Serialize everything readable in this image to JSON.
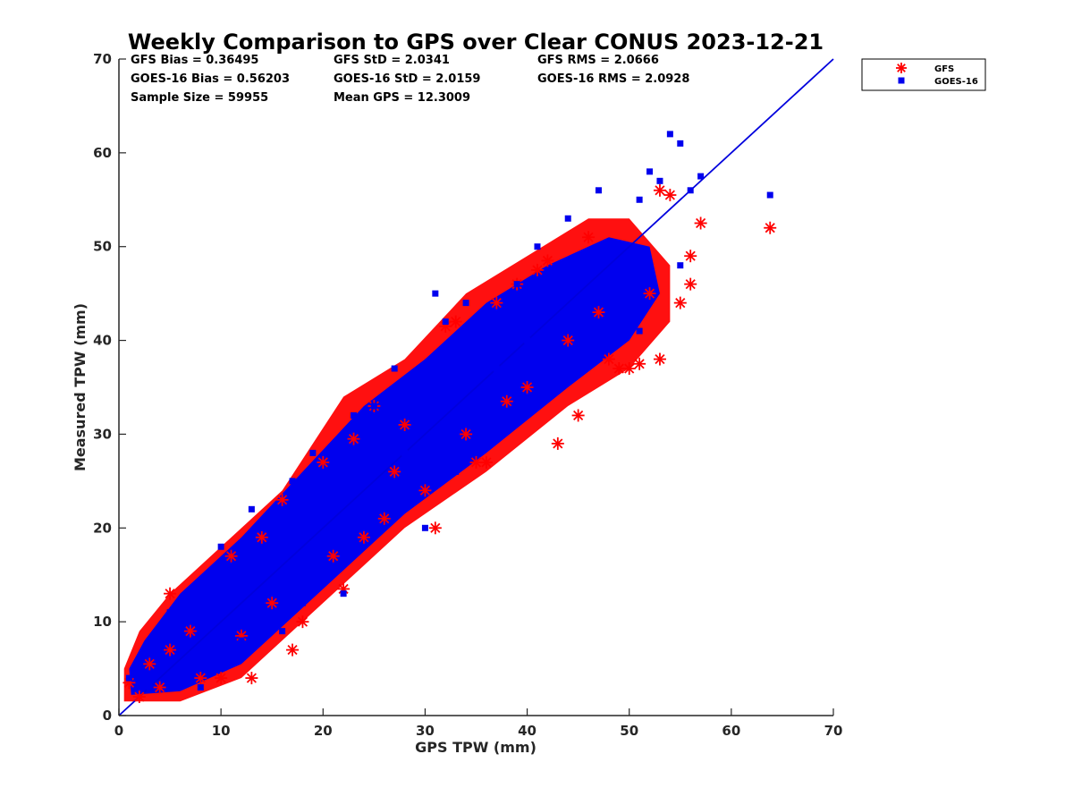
{
  "chart_data": {
    "type": "scatter",
    "title": "Weekly Comparison to GPS over Clear CONUS 2023-12-21",
    "xlabel": "GPS TPW (mm)",
    "ylabel": "Measured TPW (mm)",
    "xlim": [
      0,
      70
    ],
    "ylim": [
      0,
      70
    ],
    "xticks": [
      "0",
      "10",
      "20",
      "30",
      "40",
      "50",
      "60",
      "70"
    ],
    "yticks": [
      "0",
      "10",
      "20",
      "30",
      "40",
      "50",
      "60",
      "70"
    ],
    "grid": false,
    "legend_position": "outside-top-right",
    "stats": [
      "GFS Bias = 0.36495",
      "GFS StD = 2.0341",
      "GFS RMS = 2.0666",
      "GOES-16 Bias = 0.56203",
      "GOES-16 StD = 2.0159",
      "GOES-16 RMS = 2.0928",
      "Sample Size = 59955",
      "Mean GPS = 12.3009"
    ],
    "reference_line": {
      "name": "1:1 line",
      "from": [
        0,
        0
      ],
      "to": [
        70,
        70
      ],
      "color": "#0000dd"
    },
    "series": [
      {
        "name": "GFS",
        "marker": "asterisk",
        "color": "#ff0000",
        "points": [
          [
            1,
            3.5
          ],
          [
            2,
            2
          ],
          [
            3,
            5.5
          ],
          [
            4,
            3
          ],
          [
            5,
            13
          ],
          [
            5,
            7
          ],
          [
            7,
            9
          ],
          [
            8,
            4
          ],
          [
            10,
            4
          ],
          [
            11,
            17
          ],
          [
            12,
            8.5
          ],
          [
            13,
            4
          ],
          [
            14,
            19
          ],
          [
            15,
            12
          ],
          [
            16,
            23
          ],
          [
            17,
            7
          ],
          [
            18,
            10
          ],
          [
            20,
            27
          ],
          [
            21,
            17
          ],
          [
            22,
            13.5
          ],
          [
            23,
            29.5
          ],
          [
            24,
            19
          ],
          [
            25,
            33
          ],
          [
            26,
            21
          ],
          [
            27,
            26
          ],
          [
            28,
            31
          ],
          [
            30,
            24
          ],
          [
            31,
            20
          ],
          [
            32,
            41.5
          ],
          [
            33,
            42
          ],
          [
            34,
            30
          ],
          [
            35,
            27
          ],
          [
            36,
            27
          ],
          [
            37,
            44
          ],
          [
            38,
            33.5
          ],
          [
            39,
            46
          ],
          [
            40,
            35
          ],
          [
            41,
            47.5
          ],
          [
            42,
            48.5
          ],
          [
            43,
            29
          ],
          [
            44,
            40
          ],
          [
            45,
            32
          ],
          [
            46,
            51
          ],
          [
            47,
            43
          ],
          [
            48,
            38
          ],
          [
            49,
            37
          ],
          [
            50,
            37
          ],
          [
            51,
            37.5
          ],
          [
            52,
            45
          ],
          [
            53,
            38
          ],
          [
            53,
            56
          ],
          [
            54,
            55.5
          ],
          [
            55,
            44
          ],
          [
            56,
            46
          ],
          [
            56,
            49
          ],
          [
            57,
            52.5
          ],
          [
            63.8,
            52
          ]
        ]
      },
      {
        "name": "GOES-16",
        "marker": "square",
        "color": "#0000ee",
        "points": [
          [
            1,
            4
          ],
          [
            2,
            6
          ],
          [
            3,
            3
          ],
          [
            4,
            8
          ],
          [
            5,
            11
          ],
          [
            6,
            5
          ],
          [
            7,
            12
          ],
          [
            8,
            3
          ],
          [
            10,
            18
          ],
          [
            11,
            13
          ],
          [
            12,
            8
          ],
          [
            13,
            22
          ],
          [
            14,
            20
          ],
          [
            15,
            16
          ],
          [
            16,
            9
          ],
          [
            17,
            25
          ],
          [
            18,
            12
          ],
          [
            19,
            28
          ],
          [
            20,
            22
          ],
          [
            21,
            24
          ],
          [
            22,
            13
          ],
          [
            23,
            32
          ],
          [
            24,
            27
          ],
          [
            25,
            33
          ],
          [
            27,
            37
          ],
          [
            28,
            28
          ],
          [
            30,
            33
          ],
          [
            30,
            20
          ],
          [
            31,
            45
          ],
          [
            32,
            42
          ],
          [
            33,
            26
          ],
          [
            34,
            44
          ],
          [
            35,
            38
          ],
          [
            36,
            43
          ],
          [
            37,
            37
          ],
          [
            38,
            31
          ],
          [
            39,
            46
          ],
          [
            40,
            40
          ],
          [
            41,
            50
          ],
          [
            42,
            35
          ],
          [
            43,
            48
          ],
          [
            44,
            53
          ],
          [
            45,
            47
          ],
          [
            46,
            40
          ],
          [
            47,
            56
          ],
          [
            48,
            44
          ],
          [
            49,
            46
          ],
          [
            50,
            49
          ],
          [
            51,
            55
          ],
          [
            51,
            41
          ],
          [
            52,
            58
          ],
          [
            53,
            57
          ],
          [
            54,
            62
          ],
          [
            55,
            61
          ],
          [
            55,
            48
          ],
          [
            56,
            56
          ],
          [
            57,
            57.5
          ],
          [
            63.8,
            55.5
          ]
        ]
      }
    ]
  }
}
